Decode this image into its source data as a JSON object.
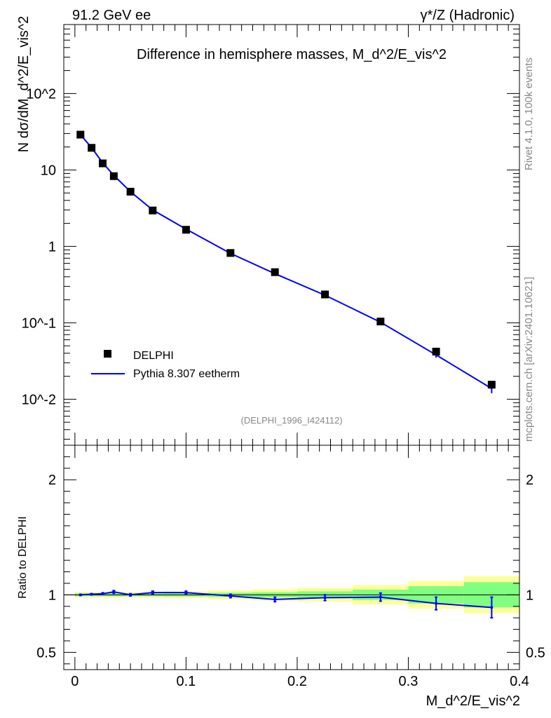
{
  "header": {
    "energy_label": "91.2 GeV ee",
    "process_label": "γ*/Z (Hadronic)"
  },
  "side_labels": {
    "rivet": "Rivet 4.1.0,  100k events",
    "source": "mcplots.cern.ch [arXiv:2401.10621]"
  },
  "chart_data": [
    {
      "type": "line",
      "title": "Difference in hemisphere masses, M_d^2/E_vis^2",
      "subtitle": "(DELPHI_1996_I424112)",
      "xlabel": "M_d^2/E_vis^2",
      "ylabel": "N  dσ/dM_d^2/E_vis^2",
      "yscale": "log",
      "xlim": [
        -0.01,
        0.4
      ],
      "ylim": [
        0.0025,
        800
      ],
      "y_ticks": [
        "10^-2",
        "10^-1",
        "1",
        "10",
        "10^2"
      ],
      "x_ticks": [
        "0",
        "0.1",
        "0.2",
        "0.3",
        "0.4"
      ],
      "legend": {
        "position": "bottom-left",
        "entries": [
          "DELPHI",
          "Pythia 8.307 eetherm"
        ]
      },
      "x": [
        0.005,
        0.015,
        0.025,
        0.035,
        0.05,
        0.07,
        0.1,
        0.14,
        0.18,
        0.225,
        0.275,
        0.325,
        0.375
      ],
      "series": [
        {
          "name": "DELPHI",
          "marker": "square",
          "color": "#000000",
          "values": [
            29.0,
            19.5,
            12.2,
            8.3,
            5.2,
            2.95,
            1.65,
            0.82,
            0.46,
            0.235,
            0.104,
            0.042,
            0.0155
          ]
        },
        {
          "name": "Pythia 8.307 eetherm",
          "color": "#0000ff",
          "values": [
            29.0,
            19.6,
            12.4,
            8.5,
            5.2,
            3.0,
            1.68,
            0.81,
            0.44,
            0.23,
            0.102,
            0.038,
            0.0138
          ],
          "errors": [
            0,
            0,
            0,
            0,
            0,
            0,
            0,
            0,
            0,
            0,
            0,
            0.003,
            0.0018
          ]
        }
      ]
    },
    {
      "type": "line",
      "title": "",
      "xlabel": "M_d^2/E_vis^2",
      "ylabel": "Ratio to DELPHI",
      "xlim": [
        -0.01,
        0.4
      ],
      "ylim": [
        0.35,
        2.3
      ],
      "y_ticks": [
        "0.5",
        "1",
        "2"
      ],
      "x_ticks": [
        "0",
        "0.1",
        "0.2",
        "0.3",
        "0.4"
      ],
      "x": [
        0.005,
        0.015,
        0.025,
        0.035,
        0.05,
        0.07,
        0.1,
        0.14,
        0.18,
        0.225,
        0.275,
        0.325,
        0.375
      ],
      "series": [
        {
          "name": "Pythia 8.307 eetherm / DELPHI",
          "color": "#0000ff",
          "values": [
            1.0,
            1.005,
            1.01,
            1.025,
            1.0,
            1.02,
            1.02,
            0.99,
            0.96,
            0.975,
            0.98,
            0.925,
            0.89
          ],
          "errors": [
            0.005,
            0.005,
            0.008,
            0.012,
            0.01,
            0.012,
            0.012,
            0.015,
            0.02,
            0.025,
            0.035,
            0.055,
            0.09
          ]
        }
      ],
      "bands": {
        "x_low": [
          0.0,
          0.01,
          0.02,
          0.03,
          0.04,
          0.06,
          0.08,
          0.12,
          0.16,
          0.2,
          0.25,
          0.3,
          0.35
        ],
        "x_high": [
          0.01,
          0.02,
          0.03,
          0.04,
          0.06,
          0.08,
          0.12,
          0.16,
          0.2,
          0.25,
          0.3,
          0.35,
          0.4
        ],
        "inner": [
          0.012,
          0.012,
          0.012,
          0.012,
          0.012,
          0.012,
          0.014,
          0.018,
          0.022,
          0.03,
          0.045,
          0.075,
          0.11
        ],
        "outer": [
          0.025,
          0.025,
          0.025,
          0.025,
          0.025,
          0.025,
          0.03,
          0.04,
          0.05,
          0.06,
          0.085,
          0.12,
          0.16
        ],
        "inner_color": "#80ff80",
        "outer_color": "#ffff99"
      }
    }
  ]
}
